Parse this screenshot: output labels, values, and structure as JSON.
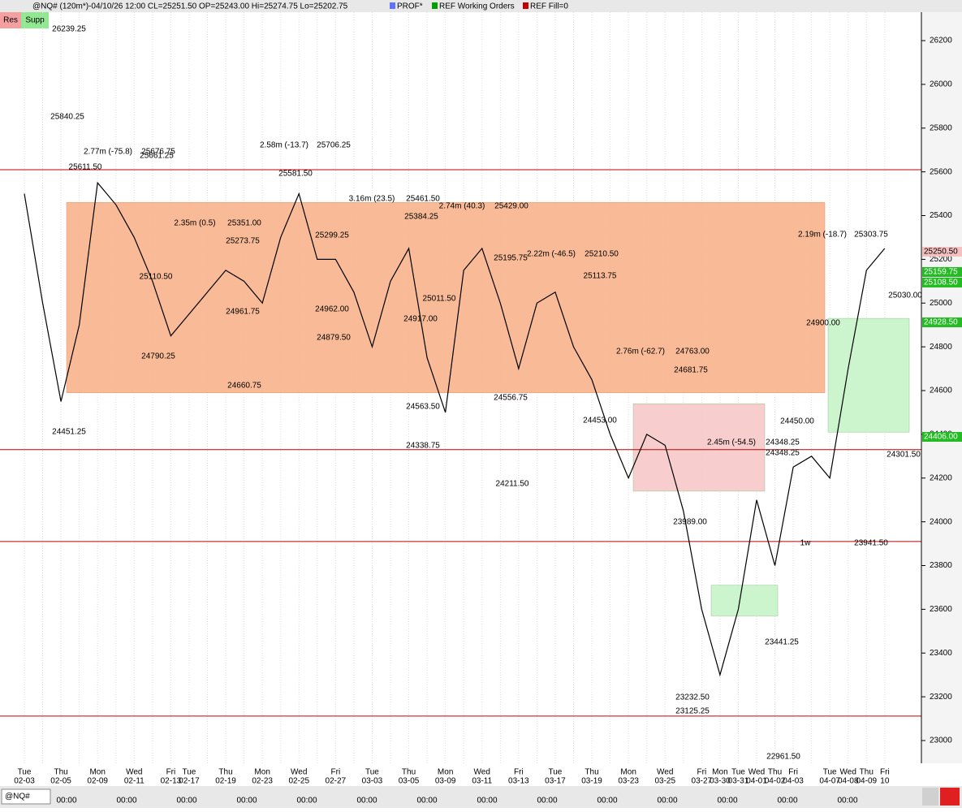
{
  "header": {
    "symbol": "@NQ# (120m*)-04/10/26 12:00 CL=25251.50 OP=25243.00 Hi=25274.75 Lo=25202.75",
    "studies": [
      "PROF*",
      "REF Working Orders",
      "REF Fill=0"
    ],
    "study_colors": [
      "#6070ff",
      "#00a000",
      "#c00000"
    ],
    "buttons": [
      "Res",
      "Supp"
    ]
  },
  "footer": {
    "symbol": "@NQ#",
    "time_labels": [
      "00:00",
      "00:00",
      "00:00",
      "00:00",
      "00:00",
      "00:00",
      "00:00",
      "00:00",
      "00:00",
      "00:00",
      "00:00",
      "00:00",
      "00:00",
      "00:00"
    ]
  },
  "chart_data": {
    "type": "line",
    "color": "#000000",
    "categories": [
      "02-03",
      null,
      "02-05",
      null,
      "02-09",
      null,
      "02-11",
      null,
      "02-13",
      "02-17",
      null,
      "02-19",
      null,
      "02-23",
      null,
      "02-25",
      null,
      "02-27",
      null,
      "03-03",
      null,
      "03-05",
      null,
      "03-09",
      null,
      "03-11",
      null,
      "03-13",
      null,
      "03-17",
      null,
      "03-19",
      null,
      "03-23",
      null,
      "03-25",
      null,
      "03-27",
      "03-30",
      "03-31",
      "04-01",
      "04-02",
      "04-03",
      null,
      "04-07",
      "04-08",
      "04-09",
      "10"
    ],
    "weekdays": [
      "Tue",
      null,
      "Thu",
      null,
      "Mon",
      null,
      "Wed",
      null,
      "Fri",
      "Tue",
      null,
      "Thu",
      null,
      "Mon",
      null,
      "Wed",
      null,
      "Fri",
      null,
      "Tue",
      null,
      "Thu",
      null,
      "Mon",
      null,
      "Wed",
      null,
      "Fri",
      null,
      "Tue",
      null,
      "Thu",
      null,
      "Mon",
      null,
      "Wed",
      null,
      "Fri",
      "Mon",
      "Tue",
      "Wed",
      "Thu",
      "Fri",
      null,
      "Tue",
      "Wed",
      "Thu",
      "Fri"
    ],
    "values": [
      25500,
      25000,
      24550,
      24900,
      25550,
      25450,
      25300,
      25100,
      24850,
      24950,
      25050,
      25150,
      25100,
      25000,
      25300,
      25500,
      25200,
      25200,
      25050,
      24800,
      25100,
      25250,
      24750,
      24500,
      25150,
      25250,
      25000,
      24700,
      25000,
      25050,
      24800,
      24650,
      24400,
      24200,
      24400,
      24350,
      24050,
      23600,
      23300,
      23600,
      24100,
      23800,
      24250,
      24300,
      24200,
      24700,
      25150,
      25250
    ],
    "ylim": [
      22896,
      26330
    ],
    "yticks": [
      23000,
      23200,
      23400,
      23600,
      23800,
      24000,
      24200,
      24400,
      24600,
      24800,
      25000,
      25200,
      25400,
      25600,
      25800,
      26000,
      26200
    ],
    "zones": [
      {
        "low": 24590,
        "high": 25460,
        "color": "#f9b48c"
      },
      {
        "low": 24140,
        "high": 24540,
        "color": "#f8c8c8"
      },
      {
        "low": 24410,
        "high": 24930,
        "color": "#c8f5c8"
      },
      {
        "low": 23570,
        "high": 23710,
        "color": "#c8f5c8"
      }
    ],
    "levels": [
      25610,
      24330,
      23910,
      23112
    ],
    "level_color": "#c00000",
    "annotations": [
      "26239.25",
      "25840.25",
      "25611.50",
      "25676.75",
      "25661.25",
      "25581.50",
      "25706.25",
      "25461.50",
      "25429.00",
      "25384.25",
      "25351.00",
      "25273.75",
      "25299.25",
      "25210.50",
      "25195.75",
      "25113.75",
      "25110.50",
      "25011.50",
      "24962.00",
      "24961.75",
      "24917.00",
      "24900.00",
      "24879.50",
      "24790.25",
      "24763.00",
      "24681.75",
      "24660.75",
      "24556.75",
      "24563.50",
      "24453.00",
      "24450.00",
      "24451.25",
      "24348.25",
      "24348.25",
      "24338.75",
      "24301.50",
      "24211.50",
      "23989.00",
      "23941.50",
      "23441.25",
      "23232.50",
      "23125.25",
      "22961.50",
      "25303.75",
      "25030.00",
      "2.77m (-75.8)",
      "2.58m (-13.7)",
      "3.16m (23.5)",
      "2.74m (40.3)",
      "2.35m (0.5)",
      "2.22m (-46.5)",
      "2.76m (-62.7)",
      "2.45m (-54.5)",
      "2.19m (-18.7)",
      "1w"
    ],
    "price_tags": [
      "25250.50",
      "25159.75",
      "25108.50",
      "24928.50",
      "24406.00"
    ],
    "price_tag_colors": [
      "#f4c0c0",
      "#22bb22",
      "#22bb22",
      "#22bb22",
      "#22bb22"
    ]
  }
}
